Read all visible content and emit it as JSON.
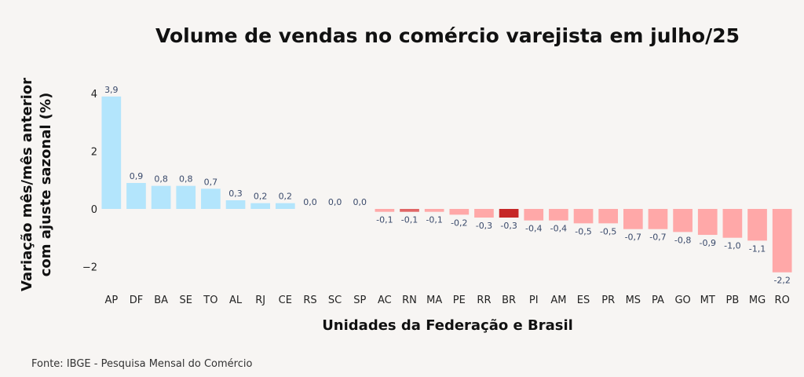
{
  "chart_data": {
    "type": "bar",
    "title": "Volume de vendas no comércio varejista em julho/25",
    "xlabel": "Unidades da Federação e Brasil",
    "ylabel_lines": [
      "Variação mês/mês anterior",
      "com ajuste sazonal (%)"
    ],
    "ylim": [
      -2.4,
      4.2
    ],
    "yticks": [
      4,
      2,
      0,
      -2
    ],
    "ytick_labels": [
      "4",
      "2",
      "0",
      "−2"
    ],
    "grid": false,
    "legend": "none",
    "categories": [
      "AP",
      "DF",
      "BA",
      "SE",
      "TO",
      "AL",
      "RJ",
      "CE",
      "RS",
      "SC",
      "SP",
      "AC",
      "RN",
      "MA",
      "PE",
      "RR",
      "BR",
      "PI",
      "AM",
      "ES",
      "PR",
      "MS",
      "PA",
      "GO",
      "MT",
      "PB",
      "MG",
      "RO"
    ],
    "values": [
      3.9,
      0.9,
      0.8,
      0.8,
      0.7,
      0.3,
      0.2,
      0.2,
      0.0,
      0.0,
      0.0,
      -0.1,
      -0.1,
      -0.1,
      -0.2,
      -0.3,
      -0.3,
      -0.4,
      -0.4,
      -0.5,
      -0.5,
      -0.7,
      -0.7,
      -0.8,
      -0.9,
      -1.0,
      -1.1,
      -2.2
    ],
    "value_labels": [
      "3,9",
      "0,9",
      "0,8",
      "0,8",
      "0,7",
      "0,3",
      "0,2",
      "0,2",
      "0,0",
      "0,0",
      "0,0",
      "-0,1",
      "-0,1",
      "-0,1",
      "-0,2",
      "-0,3",
      "-0,3",
      "-0,4",
      "-0,4",
      "-0,5",
      "-0,5",
      "-0,7",
      "-0,7",
      "-0,8",
      "-0,9",
      "-1,0",
      "-1,1",
      "-2,2"
    ],
    "colors": {
      "positive": "#b3e5fc",
      "negative": "#ffa8a8",
      "highlight_negative": "#e06666",
      "highlight_brasil": "#c62828"
    },
    "highlights": {
      "RN": "highlight_negative",
      "BR": "highlight_brasil"
    }
  },
  "footer": {
    "source": "Fonte: IBGE - Pesquisa Mensal do Comércio"
  }
}
